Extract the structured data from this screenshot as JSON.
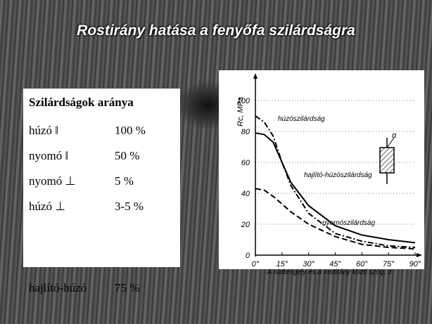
{
  "title": "Rostirány hatása a fenyőfa szilárdságra",
  "table": {
    "header": "Szilárdságok aránya",
    "rows": [
      [
        "húzó ‖",
        "100 %"
      ],
      [
        "nyomó ‖",
        "50 %"
      ],
      [
        "nyomó ⊥",
        "5 %"
      ],
      [
        "húzó ⊥",
        "3-5 %"
      ],
      [
        "hajlító-húzó",
        "75 %"
      ]
    ]
  },
  "chart_data": {
    "type": "line",
    "ylabel": "Rc, MPa",
    "xlabel": "A rúdtengely és a rostirány közti szög, α",
    "inset_label": "α",
    "x": [
      0,
      5,
      10,
      15,
      20,
      30,
      45,
      60,
      75,
      90
    ],
    "xlim": [
      0,
      90
    ],
    "xticks": [
      {
        "value": 0,
        "label": "0°"
      },
      {
        "value": 15,
        "label": "15°"
      },
      {
        "value": 30,
        "label": "30°"
      },
      {
        "value": 45,
        "label": "45°"
      },
      {
        "value": 60,
        "label": "60°"
      },
      {
        "value": 75,
        "label": "75°"
      },
      {
        "value": 90,
        "label": "90°"
      }
    ],
    "ylim": [
      0,
      100
    ],
    "yticks": [
      0,
      20,
      40,
      60,
      80,
      100
    ],
    "grid": true,
    "series": [
      {
        "name": "húzószilárdság",
        "color": "#000000",
        "values": [
          90,
          86,
          77,
          60,
          45,
          27,
          14,
          9,
          6,
          5
        ]
      },
      {
        "name": "hajlító-húzószilárdság",
        "color": "#000000",
        "values": [
          79,
          78,
          73,
          60,
          47,
          32,
          19,
          13,
          10,
          8
        ]
      },
      {
        "name": "nyomószilárdság",
        "color": "#000000",
        "values": [
          43,
          42,
          38,
          33,
          28,
          20,
          12,
          7,
          5,
          4
        ]
      }
    ]
  }
}
